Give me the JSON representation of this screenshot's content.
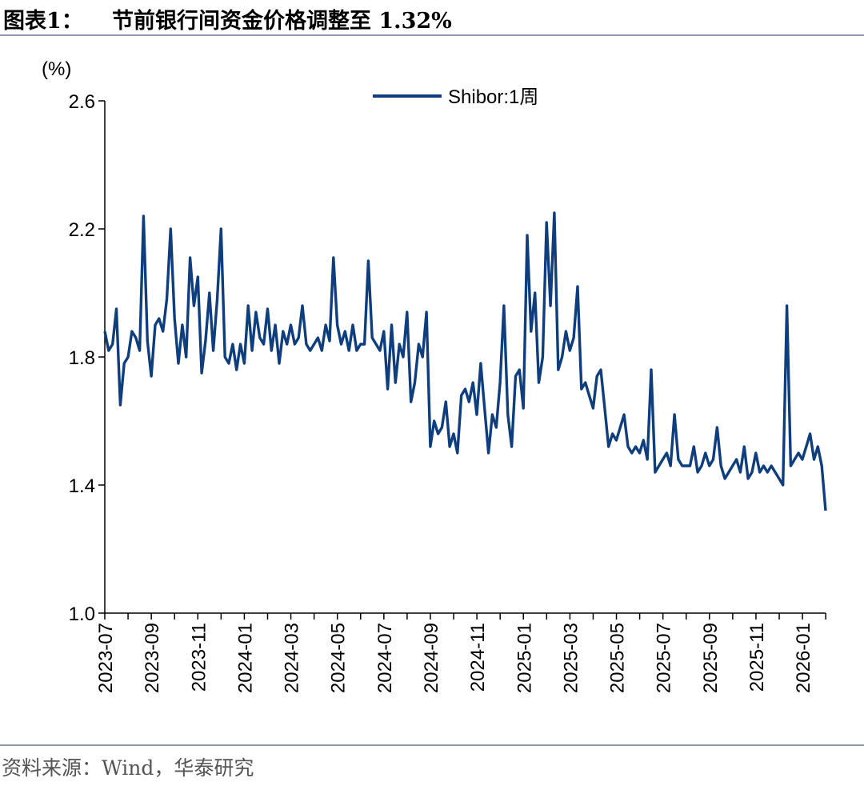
{
  "header": {
    "tag": "图表1：",
    "title": "节前银行间资金价格调整至 1.32%"
  },
  "footer": {
    "source": "资料来源：Wind，华泰研究"
  },
  "colors": {
    "line": "#0f3e7e",
    "rule": "#8a9bb0"
  },
  "chart_data": {
    "type": "line",
    "title": "节前银行间资金价格调整至 1.32%",
    "ylabel": "(%)",
    "ylim": [
      1.0,
      2.6
    ],
    "yticks": [
      "1.0",
      "1.4",
      "1.8",
      "2.2",
      "2.6"
    ],
    "xlim": [
      "2023-07",
      "2026-02"
    ],
    "xticks": [
      "2023-07",
      "2023-09",
      "2023-11",
      "2024-01",
      "2024-03",
      "2024-05",
      "2024-07",
      "2024-09",
      "2024-11",
      "2025-01",
      "2025-03",
      "2025-05",
      "2025-07",
      "2025-09",
      "2025-11",
      "2026-01"
    ],
    "legend": "top-center",
    "series": [
      {
        "name": "Shibor:1周",
        "sample": "every ~10 trading days (approximate readings)",
        "values": [
          1.88,
          1.82,
          1.84,
          1.95,
          1.65,
          1.78,
          1.8,
          1.88,
          1.86,
          1.82,
          2.24,
          1.85,
          1.74,
          1.9,
          1.92,
          1.88,
          1.98,
          2.2,
          1.92,
          1.78,
          1.9,
          1.8,
          2.11,
          1.96,
          2.05,
          1.75,
          1.85,
          2.0,
          1.82,
          1.98,
          2.2,
          1.8,
          1.78,
          1.84,
          1.76,
          1.84,
          1.78,
          1.96,
          1.82,
          1.94,
          1.86,
          1.84,
          1.95,
          1.82,
          1.9,
          1.78,
          1.88,
          1.84,
          1.9,
          1.84,
          1.86,
          1.96,
          1.84,
          1.82,
          1.84,
          1.86,
          1.82,
          1.9,
          1.85,
          2.11,
          1.9,
          1.84,
          1.88,
          1.82,
          1.9,
          1.82,
          1.84,
          1.84,
          2.1,
          1.86,
          1.84,
          1.82,
          1.88,
          1.7,
          1.9,
          1.72,
          1.84,
          1.8,
          1.94,
          1.66,
          1.72,
          1.84,
          1.8,
          1.94,
          1.52,
          1.6,
          1.56,
          1.58,
          1.66,
          1.52,
          1.56,
          1.5,
          1.68,
          1.7,
          1.66,
          1.72,
          1.62,
          1.78,
          1.64,
          1.5,
          1.62,
          1.58,
          1.72,
          1.96,
          1.62,
          1.52,
          1.74,
          1.76,
          1.64,
          2.18,
          1.88,
          2.0,
          1.72,
          1.8,
          2.22,
          1.96,
          2.25,
          1.76,
          1.8,
          1.88,
          1.82,
          1.86,
          2.02,
          1.7,
          1.72,
          1.68,
          1.64,
          1.74,
          1.76,
          1.64,
          1.52,
          1.56,
          1.54,
          1.58,
          1.62,
          1.52,
          1.5,
          1.52,
          1.5,
          1.54,
          1.48,
          1.76,
          1.44,
          1.46,
          1.48,
          1.5,
          1.46,
          1.62,
          1.48,
          1.46,
          1.46,
          1.46,
          1.52,
          1.44,
          1.46,
          1.5,
          1.46,
          1.48,
          1.58,
          1.46,
          1.42,
          1.44,
          1.46,
          1.48,
          1.44,
          1.52,
          1.42,
          1.44,
          1.5,
          1.44,
          1.46,
          1.44,
          1.46,
          1.44,
          1.42,
          1.4,
          1.96,
          1.46,
          1.48,
          1.5,
          1.48,
          1.52,
          1.56,
          1.48,
          1.52,
          1.46,
          1.32
        ]
      }
    ]
  }
}
